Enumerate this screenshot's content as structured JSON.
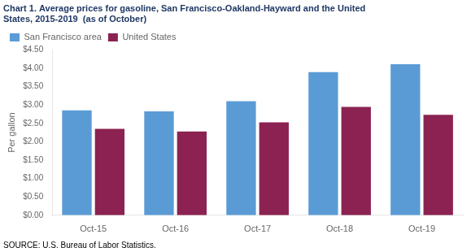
{
  "chart_data": {
    "type": "bar",
    "title": [
      "Chart 1. Average prices for gasoline, San Francisco-Oakland-Hayward and the United",
      "States, 2015-2019  (as of October)"
    ],
    "title_color": "#1F3864",
    "ylabel": "Per gallon",
    "source": "SOURCE: U.S. Bureau of Labor Statistics.",
    "categories": [
      "Oct-15",
      "Oct-16",
      "Oct-17",
      "Oct-18",
      "Oct-19"
    ],
    "series": [
      {
        "name": "San Francisco area",
        "color": "#5B9BD5",
        "values": [
          2.854,
          2.83,
          3.103,
          3.893,
          4.109
        ]
      },
      {
        "name": "United States",
        "color": "#8B2252",
        "values": [
          2.352,
          2.281,
          2.53,
          2.949,
          2.733
        ]
      }
    ],
    "ylim": [
      0,
      4.5
    ],
    "yticks": [
      {
        "value": 0.0,
        "label": "$0.00"
      },
      {
        "value": 0.5,
        "label": "$0.50"
      },
      {
        "value": 1.0,
        "label": "$1.00"
      },
      {
        "value": 1.5,
        "label": "$1.50"
      },
      {
        "value": 2.0,
        "label": "$2.00"
      },
      {
        "value": 2.5,
        "label": "$2.50"
      },
      {
        "value": 3.0,
        "label": "$3.00"
      },
      {
        "value": 3.5,
        "label": "$3.50"
      },
      {
        "value": 4.0,
        "label": "$4.00"
      },
      {
        "value": 4.5,
        "label": "$4.50"
      }
    ],
    "grid": false,
    "legend": "upper left"
  }
}
